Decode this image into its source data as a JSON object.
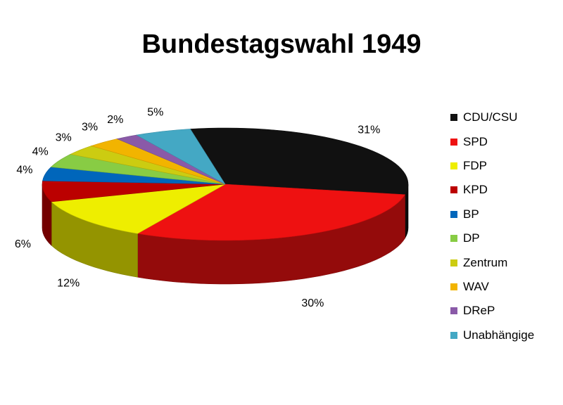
{
  "chart_data": {
    "type": "pie",
    "title": "Bundestagswahl 1949",
    "slices": [
      {
        "label": "CDU/CSU",
        "value": 31,
        "display": "31%",
        "color": "#111111"
      },
      {
        "label": "SPD",
        "value": 30,
        "display": "30%",
        "color": "#ee1111"
      },
      {
        "label": "FDP",
        "value": 12,
        "display": "12%",
        "color": "#eeee00"
      },
      {
        "label": "KPD",
        "value": 6,
        "display": "6%",
        "color": "#bb0000"
      },
      {
        "label": "BP",
        "value": 4,
        "display": "4%",
        "color": "#0066bb"
      },
      {
        "label": "DP",
        "value": 4,
        "display": "4%",
        "color": "#88cc44"
      },
      {
        "label": "Zentrum",
        "value": 3,
        "display": "3%",
        "color": "#cccc11"
      },
      {
        "label": "WAV",
        "value": 3,
        "display": "3%",
        "color": "#f2b400"
      },
      {
        "label": "DReP",
        "value": 2,
        "display": "2%",
        "color": "#8a5aa8"
      },
      {
        "label": "Unabhängige",
        "value": 5,
        "display": "5%",
        "color": "#44a8c4"
      }
    ],
    "legend_position": "right",
    "style": "3d-pie"
  }
}
